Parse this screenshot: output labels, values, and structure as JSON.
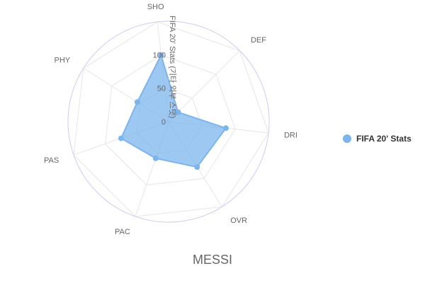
{
  "chart_data": {
    "type": "radar",
    "title": "MESSI",
    "radial_axis_title": "FIFA 20' Stats (기타 외부 스탯)",
    "categories": [
      "DEF",
      "DRI",
      "OVR",
      "PAC",
      "PAS",
      "PHY",
      "SHO"
    ],
    "series": [
      {
        "name": "FIFA 20' Stats",
        "color": "#7cb5ec",
        "values": [
          20,
          86,
          80,
          58,
          75,
          55,
          100
        ]
      }
    ],
    "rlim": [
      0,
      150
    ],
    "ticks": [
      "0",
      "50",
      "100"
    ],
    "tick_values": [
      0,
      50,
      100
    ],
    "legend_position": "right",
    "grid": true
  }
}
